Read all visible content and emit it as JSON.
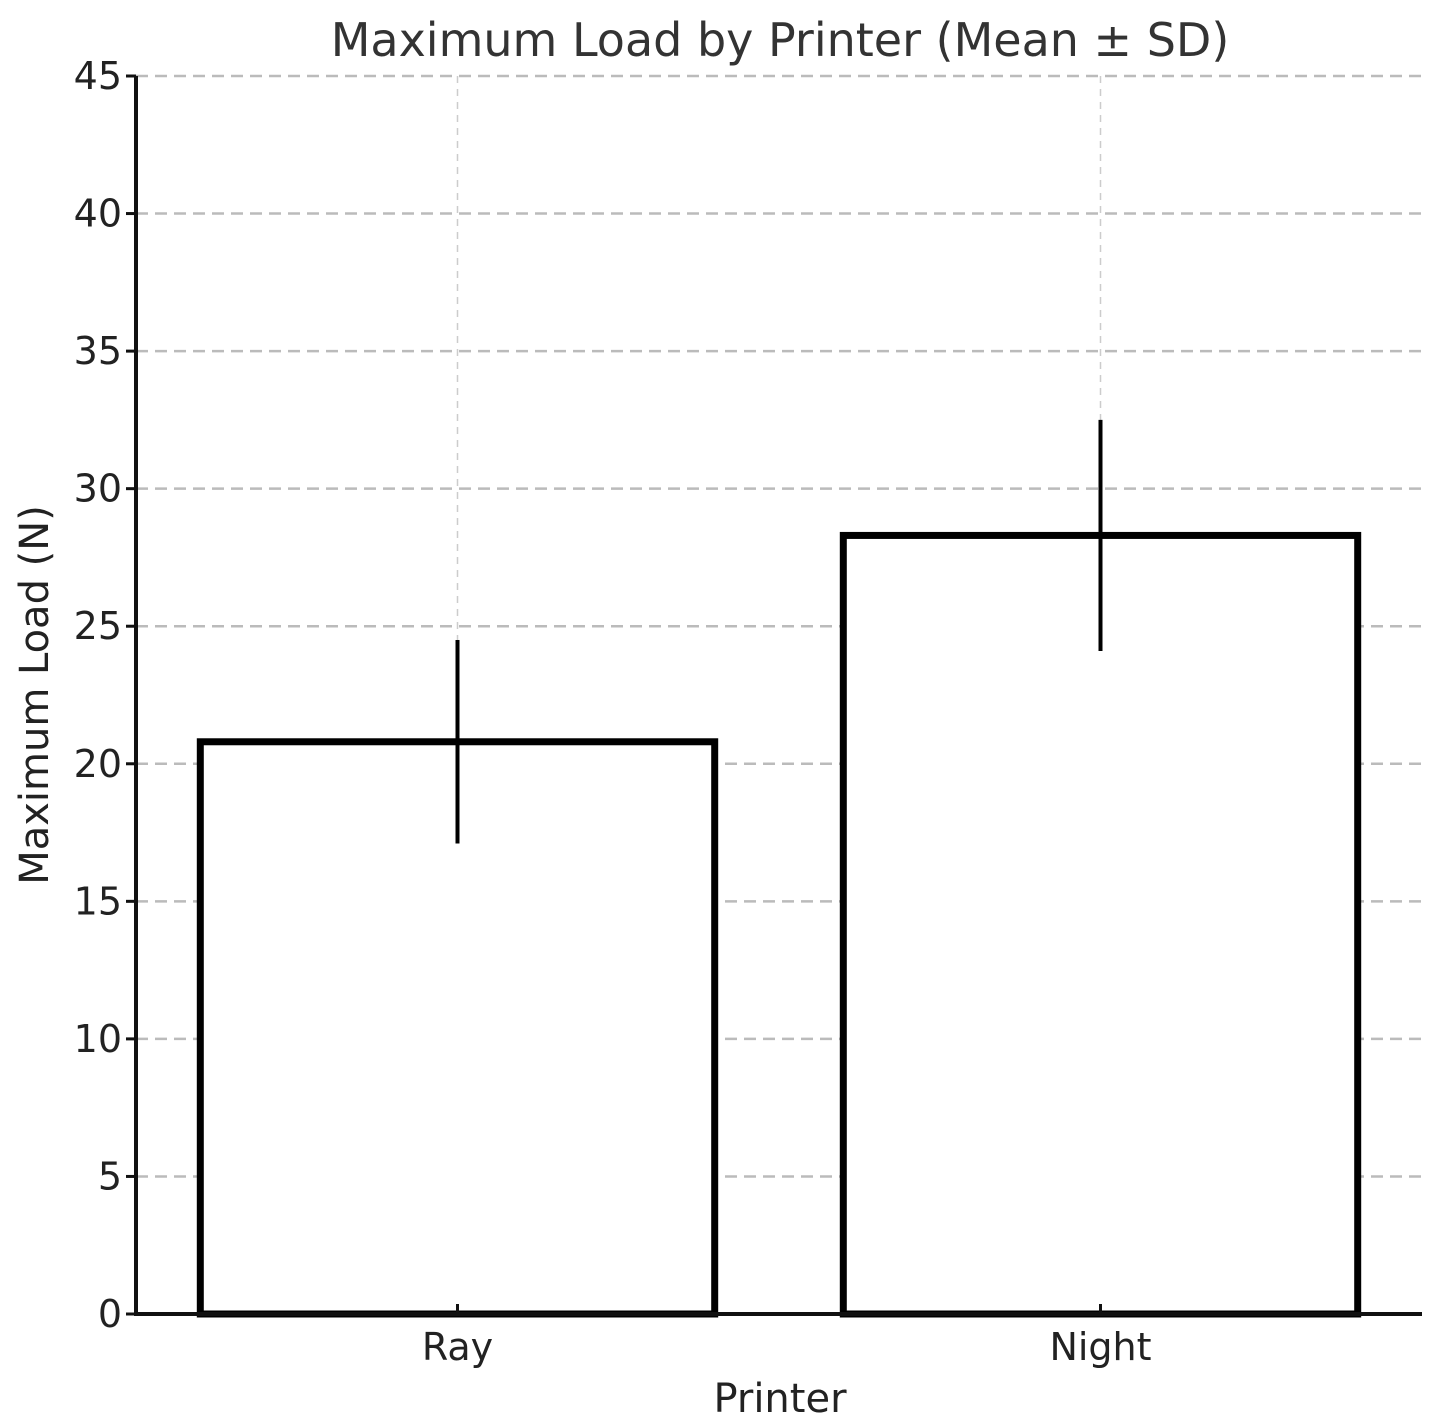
{
  "chart_data": {
    "type": "bar",
    "title": "Maximum Load by Printer (Mean ± SD)",
    "xlabel": "Printer",
    "ylabel": "Maximum Load (N)",
    "categories": [
      "Ray",
      "Night"
    ],
    "values": [
      20.8,
      28.3
    ],
    "errors": [
      3.7,
      4.2
    ],
    "ylim": [
      0,
      45
    ],
    "yticks": [
      "0",
      "5",
      "10",
      "15",
      "20",
      "25",
      "30",
      "35",
      "40",
      "45"
    ],
    "grid": true,
    "colors": {
      "bar_fill": "#ffffff",
      "bar_edge": "#000000",
      "grid": "#bbbbbb",
      "axis": "#111111"
    }
  }
}
